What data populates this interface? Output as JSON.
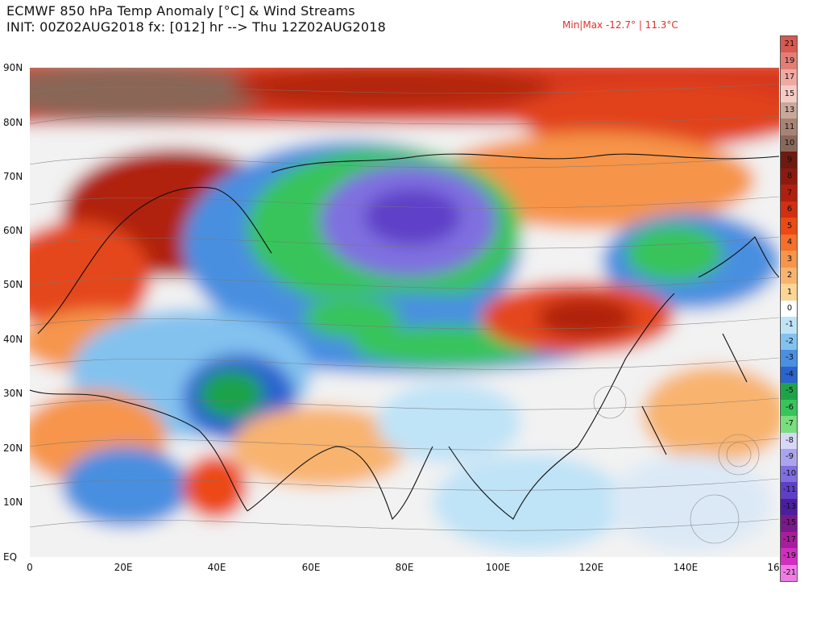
{
  "header": {
    "line1": "ECMWF 850 hPa Temp Anomaly [°C] & Wind Streams",
    "line2": "INIT: 00Z02AUG2018 fx: [012] hr --> Thu 12Z02AUG2018",
    "minmax": "Min|Max -12.7° | 11.3°C"
  },
  "map": {
    "region": "Europe, Africa and Asia, 0–160E, EQ–90N",
    "lat_labels": [
      "90N",
      "80N",
      "70N",
      "60N",
      "50N",
      "40N",
      "30N",
      "20N",
      "10N",
      "EQ"
    ],
    "lon_labels": [
      "0",
      "20E",
      "40E",
      "60E",
      "80E",
      "100E",
      "120E",
      "140E",
      "16"
    ]
  },
  "colorbar": {
    "items": [
      {
        "label": "21",
        "color": "#d8594f"
      },
      {
        "label": "19",
        "color": "#e47e75"
      },
      {
        "label": "17",
        "color": "#f0a9a1"
      },
      {
        "label": "15",
        "color": "#f5cbc6"
      },
      {
        "label": "13",
        "color": "#c9a89c"
      },
      {
        "label": "11",
        "color": "#a88373"
      },
      {
        "label": "10",
        "color": "#8a6858"
      },
      {
        "label": "9",
        "color": "#6d1a10"
      },
      {
        "label": "8",
        "color": "#8e1a0f"
      },
      {
        "label": "7",
        "color": "#b0200f"
      },
      {
        "label": "6",
        "color": "#d12e12"
      },
      {
        "label": "5",
        "color": "#ec4a14"
      },
      {
        "label": "4",
        "color": "#f5702a"
      },
      {
        "label": "3",
        "color": "#f6954c"
      },
      {
        "label": "2",
        "color": "#f8b36e"
      },
      {
        "label": "1",
        "color": "#fbd696"
      },
      {
        "label": "0",
        "color": "#ffffff"
      },
      {
        "label": "-1",
        "color": "#bfe3f7"
      },
      {
        "label": "-2",
        "color": "#83c2ef"
      },
      {
        "label": "-3",
        "color": "#4a8fe0"
      },
      {
        "label": "-4",
        "color": "#2b63cf"
      },
      {
        "label": "-5",
        "color": "#1fa34a"
      },
      {
        "label": "-6",
        "color": "#37c45a"
      },
      {
        "label": "-7",
        "color": "#79de7f"
      },
      {
        "label": "-8",
        "color": "#d6d8f6"
      },
      {
        "label": "-9",
        "color": "#aaa4ee"
      },
      {
        "label": "-10",
        "color": "#7f6fe0"
      },
      {
        "label": "-11",
        "color": "#5e3fc8"
      },
      {
        "label": "-13",
        "color": "#4b1ea0"
      },
      {
        "label": "-15",
        "color": "#7a1a8a"
      },
      {
        "label": "-17",
        "color": "#a81d9e"
      },
      {
        "label": "-19",
        "color": "#d12fbf"
      },
      {
        "label": "-21",
        "color": "#f27ae6"
      }
    ]
  }
}
